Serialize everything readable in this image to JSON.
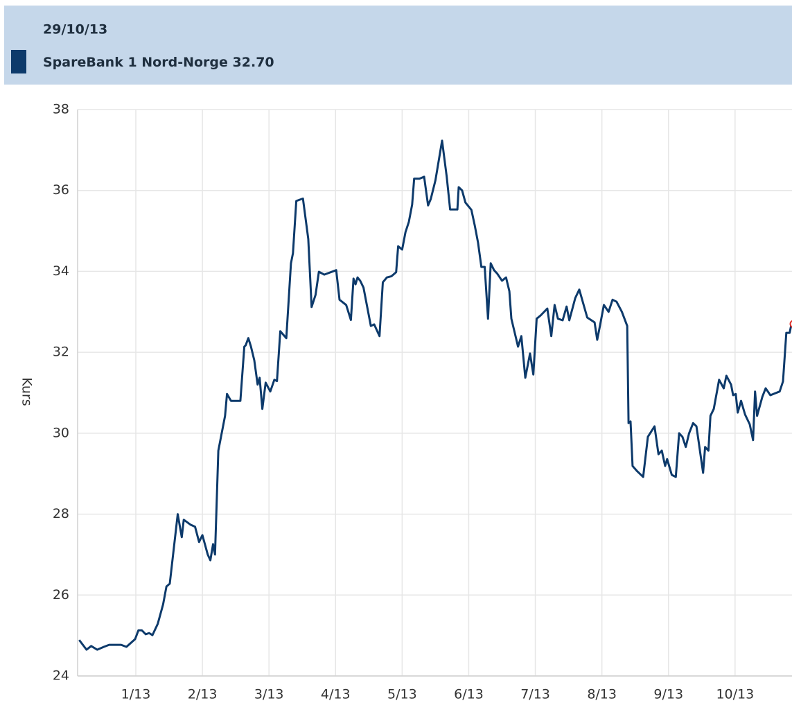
{
  "chart_data": {
    "type": "line",
    "tooltip": {
      "date": "29/10/13",
      "value": 32.7,
      "value_label": "32.70"
    },
    "y_label": "Kurs",
    "xlim": [
      0.126,
      10.855
    ],
    "ylim": [
      24,
      38
    ],
    "yticks": [
      24,
      26,
      28,
      30,
      32,
      34,
      36,
      38
    ],
    "xticks": [
      {
        "value": 1,
        "label": "1/13"
      },
      {
        "value": 2,
        "label": "2/13"
      },
      {
        "value": 3,
        "label": "3/13"
      },
      {
        "value": 4,
        "label": "4/13"
      },
      {
        "value": 5,
        "label": "5/13"
      },
      {
        "value": 6,
        "label": "6/13"
      },
      {
        "value": 7,
        "label": "7/13"
      },
      {
        "value": 8,
        "label": "8/13"
      },
      {
        "value": 9,
        "label": "9/13"
      },
      {
        "value": 10,
        "label": "10/13"
      }
    ],
    "grid": true,
    "series": [
      {
        "name": "SpareBank 1 Nord-Norge",
        "color": "#0d3a6b",
        "x": [
          0.15,
          0.26,
          0.33,
          0.42,
          0.52,
          0.6,
          0.78,
          0.86,
          0.99,
          1.04,
          1.09,
          1.15,
          1.2,
          1.25,
          1.33,
          1.41,
          1.46,
          1.51,
          1.56,
          1.63,
          1.69,
          1.72,
          1.82,
          1.89,
          1.95,
          2.0,
          2.08,
          2.12,
          2.16,
          2.19,
          2.24,
          2.34,
          2.37,
          2.43,
          2.57,
          2.63,
          2.65,
          2.69,
          2.73,
          2.78,
          2.83,
          2.86,
          2.9,
          2.95,
          3.02,
          3.08,
          3.12,
          3.17,
          3.26,
          3.33,
          3.36,
          3.41,
          3.51,
          3.59,
          3.64,
          3.7,
          3.75,
          3.83,
          4.01,
          4.06,
          4.16,
          4.23,
          4.27,
          4.3,
          4.33,
          4.37,
          4.42,
          4.53,
          4.58,
          4.66,
          4.71,
          4.77,
          4.84,
          4.91,
          4.94,
          5.0,
          5.05,
          5.1,
          5.15,
          5.18,
          5.26,
          5.33,
          5.39,
          5.43,
          5.5,
          5.6,
          5.67,
          5.72,
          5.83,
          5.85,
          5.9,
          5.95,
          6.04,
          6.09,
          6.14,
          6.19,
          6.24,
          6.29,
          6.33,
          6.38,
          6.43,
          6.5,
          6.56,
          6.61,
          6.64,
          6.71,
          6.74,
          6.79,
          6.85,
          6.92,
          6.97,
          7.02,
          7.08,
          7.18,
          7.24,
          7.29,
          7.34,
          7.41,
          7.47,
          7.51,
          7.6,
          7.66,
          7.78,
          7.89,
          7.93,
          7.97,
          8.03,
          8.1,
          8.16,
          8.22,
          8.3,
          8.38,
          8.4,
          8.43,
          8.46,
          8.53,
          8.62,
          8.69,
          8.79,
          8.85,
          8.9,
          8.95,
          8.98,
          9.05,
          9.11,
          9.16,
          9.21,
          9.26,
          9.31,
          9.37,
          9.42,
          9.52,
          9.55,
          9.6,
          9.63,
          9.68,
          9.76,
          9.83,
          9.87,
          9.94,
          9.97,
          10.01,
          10.04,
          10.09,
          10.15,
          10.22,
          10.27,
          10.3,
          10.33,
          10.41,
          10.46,
          10.53,
          10.67,
          10.72,
          10.77,
          10.82,
          10.85
        ],
        "values": [
          24.89,
          24.65,
          24.74,
          24.65,
          24.72,
          24.77,
          24.77,
          24.72,
          24.91,
          25.13,
          25.13,
          25.03,
          25.06,
          25.01,
          25.29,
          25.77,
          26.21,
          26.28,
          27.0,
          28.0,
          27.43,
          27.86,
          27.74,
          27.69,
          27.31,
          27.48,
          27.0,
          26.86,
          27.26,
          27.0,
          29.57,
          30.43,
          30.97,
          30.8,
          30.8,
          32.14,
          32.17,
          32.35,
          32.14,
          31.8,
          31.2,
          31.37,
          30.6,
          31.25,
          31.03,
          31.32,
          31.29,
          32.52,
          32.35,
          34.2,
          34.45,
          35.74,
          35.8,
          34.8,
          33.12,
          33.42,
          33.99,
          33.92,
          34.03,
          33.3,
          33.17,
          32.8,
          33.82,
          33.68,
          33.85,
          33.77,
          33.6,
          32.65,
          32.69,
          32.4,
          33.73,
          33.85,
          33.88,
          33.98,
          34.62,
          34.54,
          34.97,
          35.22,
          35.65,
          36.29,
          36.29,
          36.34,
          35.63,
          35.79,
          36.25,
          37.23,
          36.34,
          35.53,
          35.53,
          36.08,
          36.0,
          35.7,
          35.52,
          35.14,
          34.71,
          34.11,
          34.11,
          32.83,
          34.2,
          34.03,
          33.94,
          33.77,
          33.85,
          33.51,
          32.83,
          32.35,
          32.14,
          32.4,
          31.37,
          31.97,
          31.45,
          32.83,
          32.91,
          33.08,
          32.4,
          33.17,
          32.83,
          32.79,
          33.13,
          32.79,
          33.34,
          33.55,
          32.86,
          32.74,
          32.31,
          32.65,
          33.17,
          33.0,
          33.3,
          33.25,
          33.0,
          32.65,
          30.25,
          30.29,
          29.19,
          29.06,
          28.92,
          29.91,
          30.17,
          29.48,
          29.57,
          29.19,
          29.36,
          28.97,
          28.92,
          30.0,
          29.91,
          29.66,
          30.0,
          30.25,
          30.17,
          29.02,
          29.66,
          29.57,
          30.43,
          30.6,
          31.32,
          31.11,
          31.42,
          31.2,
          30.94,
          30.97,
          30.51,
          30.8,
          30.46,
          30.22,
          29.83,
          31.03,
          30.43,
          30.9,
          31.11,
          30.94,
          31.03,
          31.28,
          32.48,
          32.48,
          32.72
        ]
      }
    ]
  }
}
